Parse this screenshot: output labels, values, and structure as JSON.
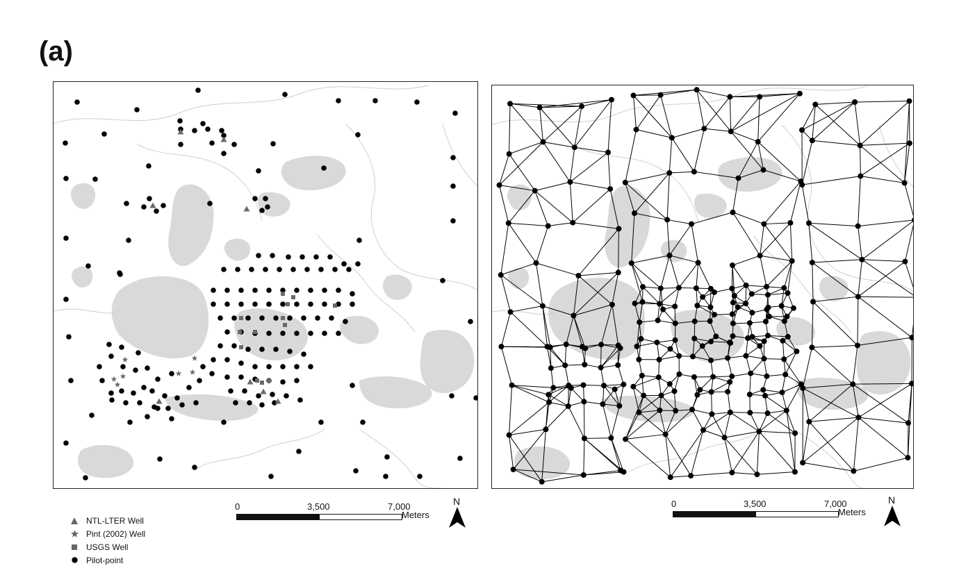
{
  "figure": {
    "panel_label": "(a)"
  },
  "legend": {
    "items": [
      {
        "label": "NTL-LTER Well",
        "symbol": "triangle",
        "color": "#666666"
      },
      {
        "label": "Pint (2002) Well",
        "symbol": "star",
        "color": "#666666"
      },
      {
        "label": "USGS Well",
        "symbol": "square",
        "color": "#666666"
      },
      {
        "label": "Pilot-point",
        "symbol": "circle",
        "color": "#000000"
      }
    ]
  },
  "scale_bar": {
    "ticks": [
      "0",
      "3,500",
      "7,000"
    ],
    "units": "Meters"
  },
  "north_arrow": {
    "label": "N"
  },
  "colors": {
    "lake": "#d9d9d9",
    "stream": "#cfcfcf",
    "point": "#000000",
    "well": "#6a6a6a",
    "network": "#000000"
  }
}
